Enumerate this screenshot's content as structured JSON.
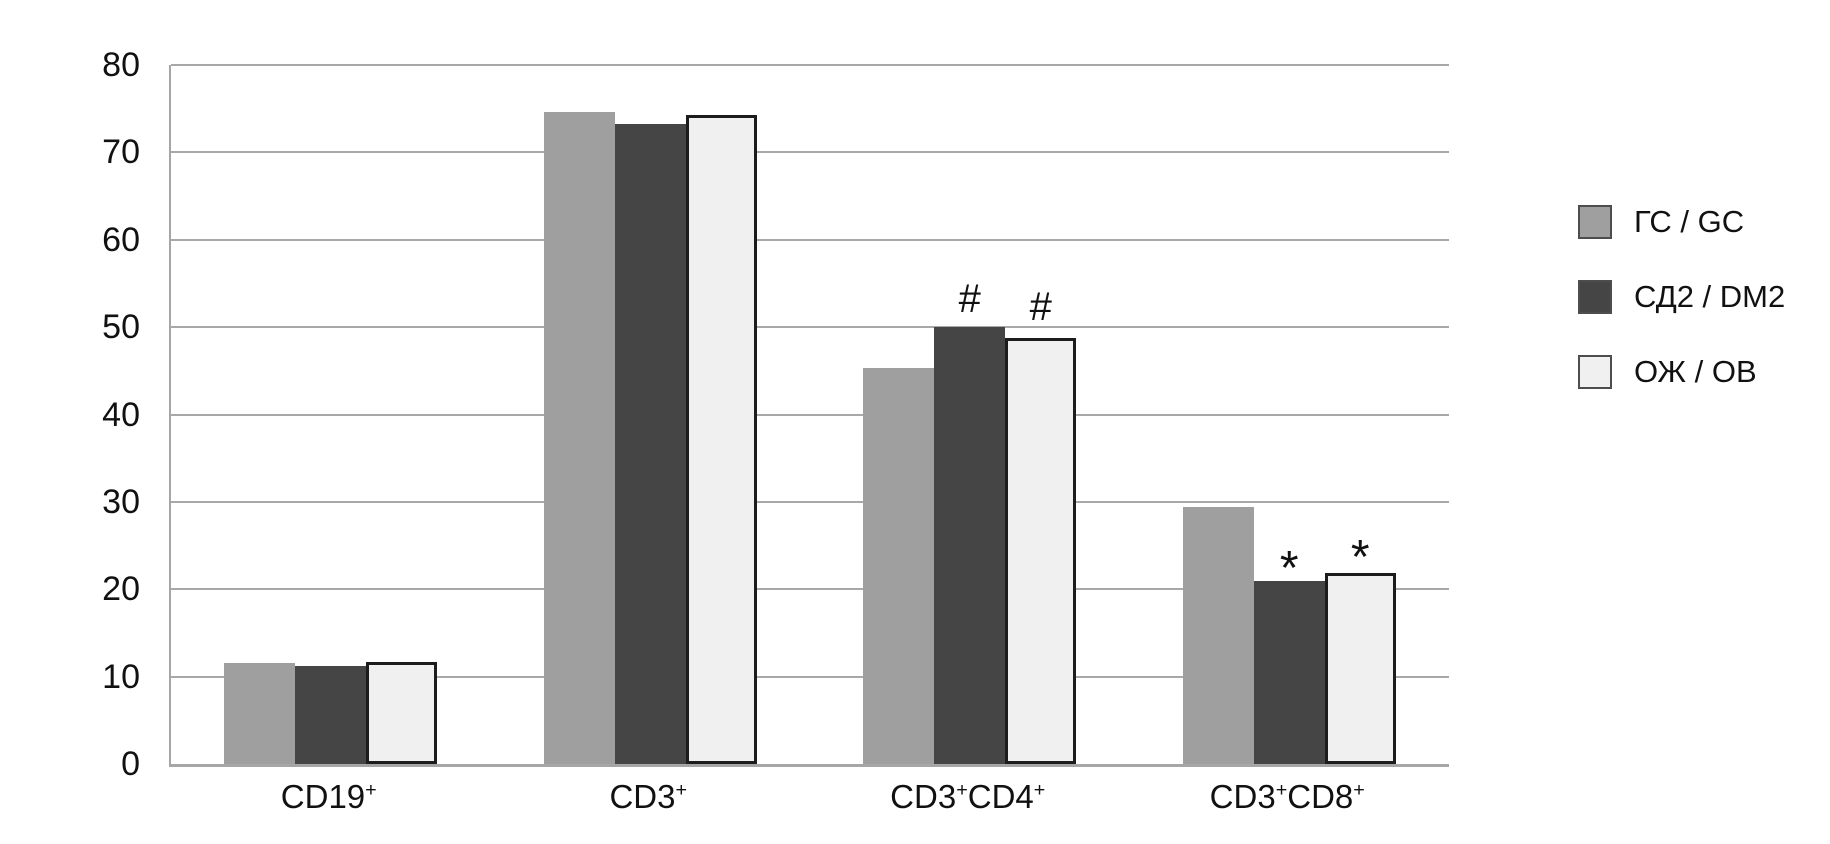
{
  "figure": {
    "background": "#ffffff",
    "grid_color": "#a8a8a8",
    "axis_color": "#a6a6a6",
    "text_color": "#111111"
  },
  "chart_data": {
    "type": "bar",
    "title": "",
    "xlabel": "",
    "ylabel": "",
    "categories": [
      "CD19+",
      "CD3+",
      "CD3+CD4+",
      "CD3+CD8+"
    ],
    "series": [
      {
        "name": "ГС / GC",
        "color": "#9f9f9f",
        "border_color": "#9f9f9f",
        "values": [
          11.6,
          74.6,
          45.3,
          29.4
        ],
        "marks": [
          "",
          "",
          "",
          ""
        ]
      },
      {
        "name": "СД2 / DM2",
        "color": "#454545",
        "border_color": "#454545",
        "values": [
          11.2,
          73.3,
          50.0,
          20.9
        ],
        "marks": [
          "",
          "",
          "#",
          "*"
        ]
      },
      {
        "name": "ОЖ / OB",
        "color": "#f0f0f0",
        "border_color": "#1c1c1c",
        "values": [
          11.7,
          74.3,
          48.7,
          21.9
        ],
        "marks": [
          "",
          "",
          "#",
          "*"
        ]
      }
    ],
    "ylim": [
      0,
      80
    ],
    "ytick_step": 10,
    "ytick_labels": [
      "0",
      "10",
      "20",
      "30",
      "40",
      "50",
      "60",
      "70",
      "80"
    ],
    "grid": true,
    "legend_position": "right",
    "annotation_symbols": {
      "hash": "#",
      "star": "*"
    }
  }
}
